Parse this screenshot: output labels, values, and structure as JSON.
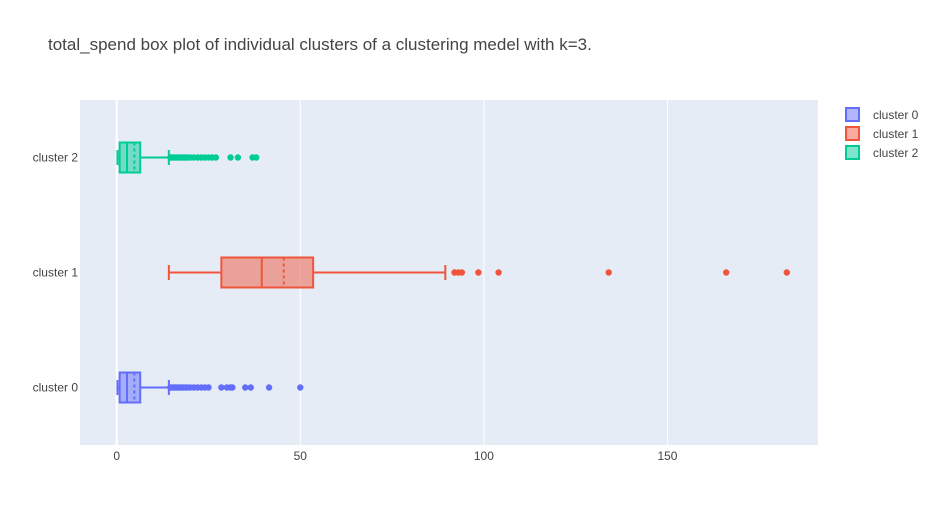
{
  "chart_data": {
    "type": "box",
    "orientation": "horizontal",
    "title": "total_spend box plot of individual clusters of a clustering medel with k=3.",
    "xlabel": "",
    "ylabel": "",
    "xlim": [
      -10,
      191
    ],
    "xticks": [
      0,
      50,
      100,
      150
    ],
    "xtick_labels": [
      "0",
      "50",
      "100",
      "150"
    ],
    "categories": [
      "cluster 0",
      "cluster 1",
      "cluster 2"
    ],
    "grid": true,
    "legend_position": "top-right",
    "series": [
      {
        "name": "cluster 0",
        "color": "#636efa",
        "min": 0.2,
        "q1": 0.8,
        "median": 2.8,
        "q3": 6.4,
        "max": 14.2,
        "mean": 4.8,
        "outliers": [
          14.6,
          15.0,
          15.5,
          16.0,
          16.5,
          17.0,
          17.5,
          18.0,
          18.6,
          19.2,
          20.0,
          21.0,
          22.0,
          23.0,
          24.0,
          25.0,
          28.5,
          30.0,
          31.0,
          31.5,
          35.0,
          36.5,
          41.5,
          50.0
        ]
      },
      {
        "name": "cluster 1",
        "color": "#ef553b",
        "min": 14.2,
        "q1": 28.5,
        "median": 39.5,
        "q3": 53.5,
        "max": 89.5,
        "mean": 45.5,
        "outliers": [
          92.0,
          93.0,
          94.0,
          98.5,
          104.0,
          134.0,
          166.0,
          182.5
        ]
      },
      {
        "name": "cluster 2",
        "color": "#00cc96",
        "min": 0.2,
        "q1": 0.8,
        "median": 2.8,
        "q3": 6.4,
        "max": 14.2,
        "mean": 4.8,
        "outliers": [
          14.6,
          15.0,
          15.5,
          16.0,
          16.5,
          17.0,
          17.5,
          18.0,
          18.6,
          19.2,
          20.0,
          21.0,
          22.0,
          23.0,
          24.0,
          25.0,
          26.0,
          27.0,
          31.0,
          33.0,
          37.0,
          38.0
        ]
      }
    ]
  }
}
